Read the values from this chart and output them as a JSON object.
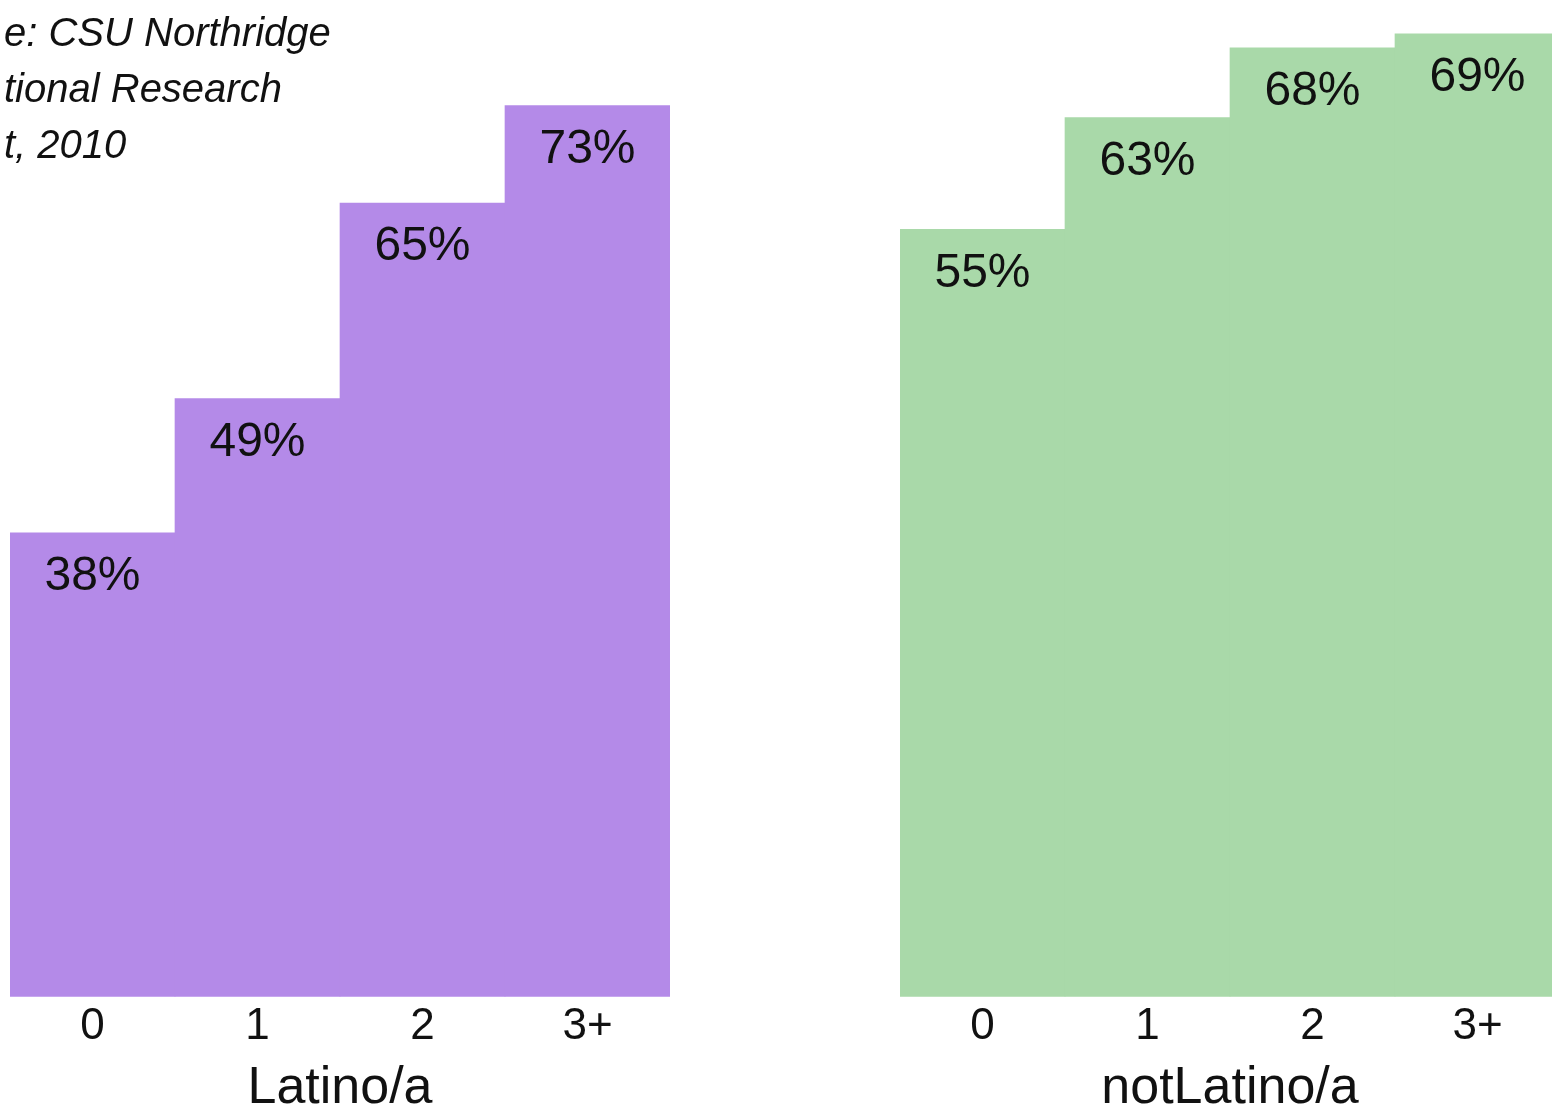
{
  "chart_data": [
    {
      "type": "bar",
      "xlabel": "Latino/a",
      "categories": [
        "0",
        "1",
        "2",
        "3+"
      ],
      "values": [
        38,
        49,
        65,
        73
      ],
      "color": "#b48ae8",
      "value_labels": [
        "38%",
        "49%",
        "65%",
        "73%"
      ],
      "annotations": [
        "e:  CSU  Northridge",
        "tional Research",
        "t, 2010"
      ],
      "grid": false,
      "legend": false
    },
    {
      "type": "bar",
      "xlabel": "notLatino/a",
      "categories": [
        "0",
        "1",
        "2",
        "3+"
      ],
      "values": [
        55,
        63,
        68,
        69
      ],
      "color": "#a9d9a9",
      "value_labels": [
        "55%",
        "63%",
        "68%",
        "69%"
      ],
      "grid": false,
      "legend": false
    }
  ]
}
